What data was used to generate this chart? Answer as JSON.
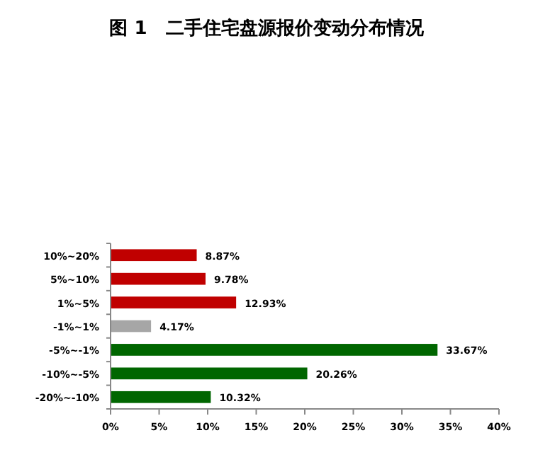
{
  "chart_data": {
    "type": "bar",
    "orientation": "horizontal",
    "title": "图 1　二手住宅盘源报价变动分布情况",
    "categories": [
      "10%~20%",
      "5%~10%",
      "1%~5%",
      "-1%~1%",
      "-5%~-1%",
      "-10%~-5%",
      "-20%~-10%"
    ],
    "values": [
      8.87,
      9.78,
      12.93,
      4.17,
      33.67,
      20.26,
      10.32
    ],
    "colors": [
      "#c00000",
      "#c00000",
      "#c00000",
      "#a6a6a6",
      "#006600",
      "#006600",
      "#006600"
    ],
    "value_labels": [
      "8.87%",
      "9.78%",
      "12.93%",
      "4.17%",
      "33.67%",
      "20.26%",
      "10.32%"
    ],
    "xlim": [
      0,
      40
    ],
    "xticks": [
      {
        "value": 0,
        "label": "0%"
      },
      {
        "value": 5,
        "label": "5%"
      },
      {
        "value": 10,
        "label": "10%"
      },
      {
        "value": 15,
        "label": "15%"
      },
      {
        "value": 20,
        "label": "20%"
      },
      {
        "value": 25,
        "label": "25%"
      },
      {
        "value": 30,
        "label": "30%"
      },
      {
        "value": 35,
        "label": "35%"
      },
      {
        "value": 40,
        "label": "40%"
      }
    ]
  }
}
